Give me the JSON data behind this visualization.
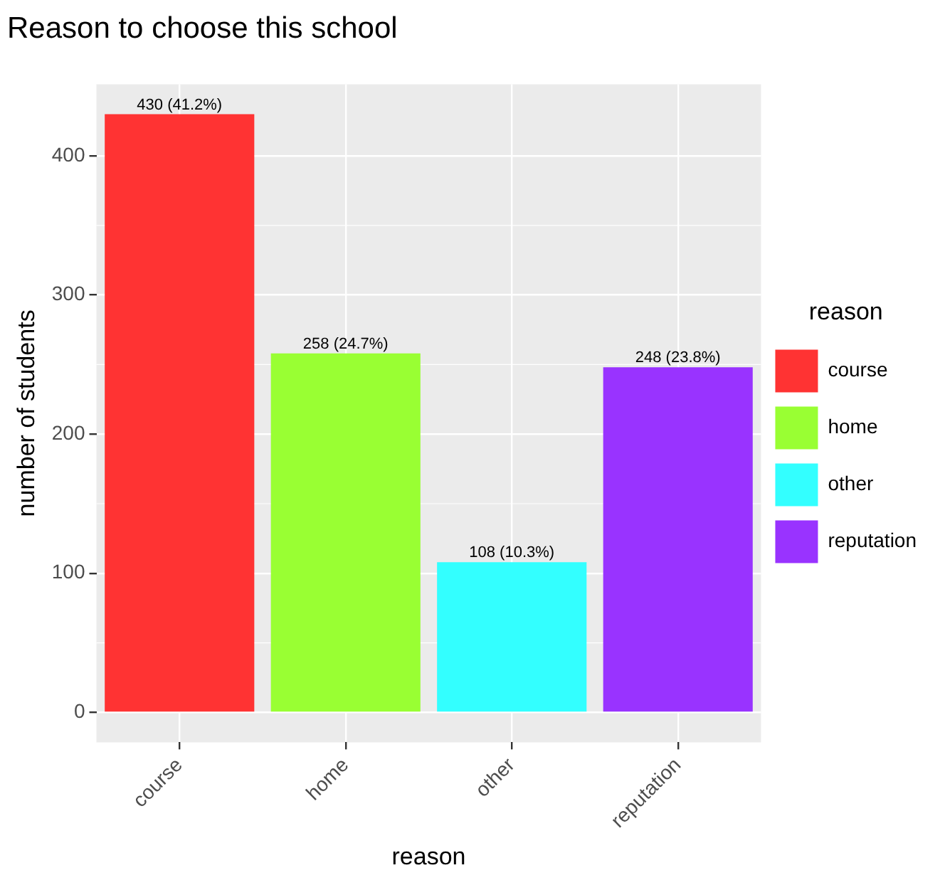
{
  "chart_data": {
    "type": "bar",
    "title": "Reason to choose this school",
    "xlabel": "reason",
    "ylabel": "number of students",
    "legend_title": "reason",
    "categories": [
      "course",
      "home",
      "other",
      "reputation"
    ],
    "series": [
      {
        "name": "course",
        "color": "#ff3333",
        "values": [
          430,
          null,
          null,
          null
        ],
        "value_labels": [
          "430 (41.2%)",
          null,
          null,
          null
        ]
      },
      {
        "name": "home",
        "color": "#99ff33",
        "values": [
          null,
          258,
          null,
          null
        ],
        "value_labels": [
          null,
          "258 (24.7%)",
          null,
          null
        ]
      },
      {
        "name": "other",
        "color": "#33ffff",
        "values": [
          null,
          null,
          108,
          null
        ],
        "value_labels": [
          null,
          null,
          "108 (10.3%)",
          null
        ]
      },
      {
        "name": "reputation",
        "color": "#9933ff",
        "values": [
          null,
          null,
          null,
          248
        ],
        "value_labels": [
          null,
          null,
          null,
          "248 (23.8%)"
        ]
      }
    ],
    "ylim": [
      -21.5,
      451.5
    ],
    "yticks": [
      0,
      100,
      200,
      300,
      400
    ],
    "grid": true,
    "legend": "right"
  }
}
